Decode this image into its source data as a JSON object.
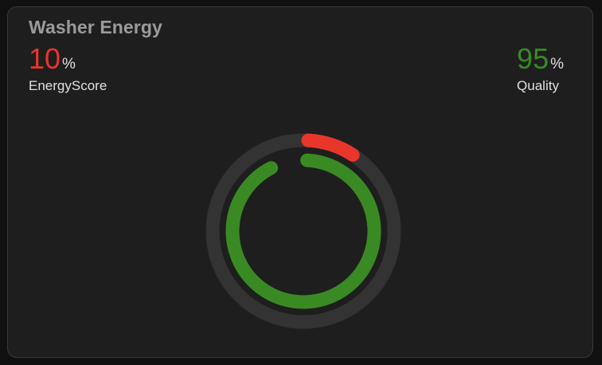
{
  "card": {
    "title": "Washer Energy"
  },
  "energy_score": {
    "value": "10",
    "unit": "%",
    "label": "EnergyScore",
    "fraction": 0.1,
    "color": "#e8362b"
  },
  "quality": {
    "value": "95",
    "unit": "%",
    "label": "Quality",
    "fraction": 0.95,
    "color": "#3a8a24"
  },
  "colors": {
    "card_bg": "#1e1e1e",
    "outer_track": "#333333",
    "title": "#9b9b9b",
    "label": "#e0e0e0"
  }
}
